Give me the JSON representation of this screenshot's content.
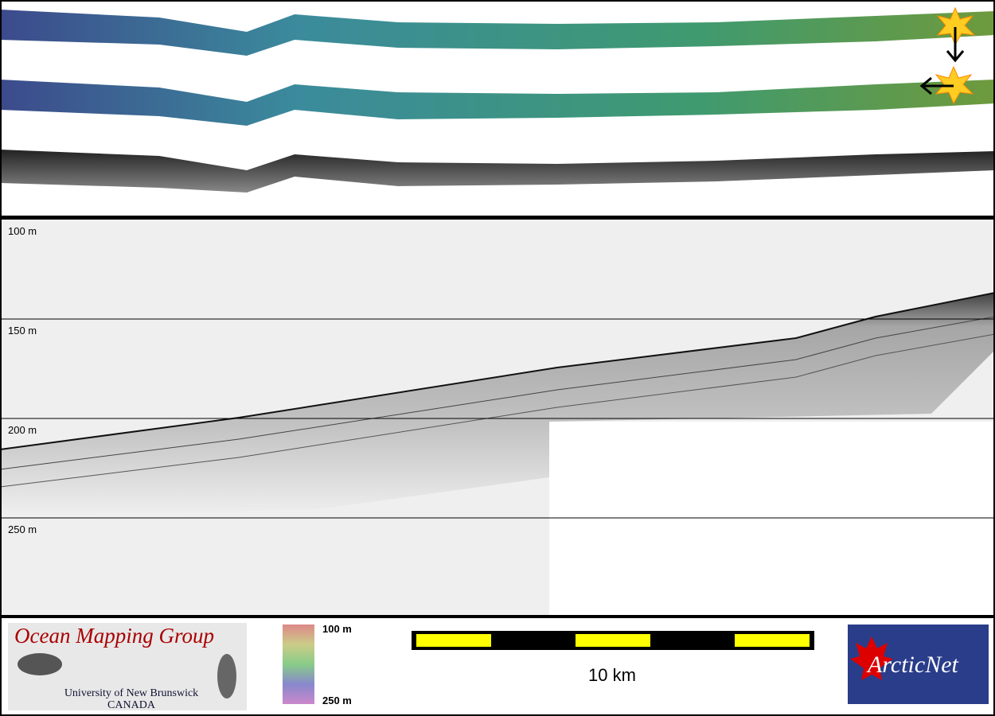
{
  "profile": {
    "depth_labels": [
      "100 m",
      "150 m",
      "200 m",
      "250 m"
    ]
  },
  "footer": {
    "logo_left": {
      "title": "Ocean Mapping Group",
      "line1": "University of New Brunswick",
      "line2": "CANADA"
    },
    "colorbar": {
      "top": "100 m",
      "bottom": "250 m"
    },
    "scale_bar": {
      "label": "10 km"
    },
    "logo_right": {
      "text": "ArcticNet"
    }
  }
}
